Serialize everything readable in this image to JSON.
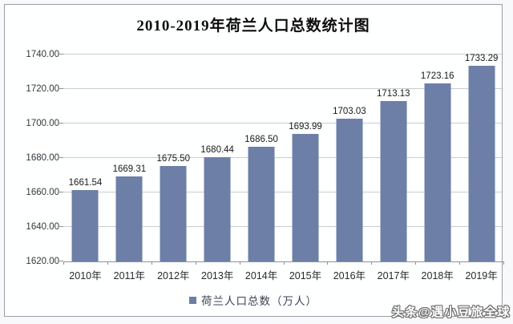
{
  "chart_data": {
    "type": "bar",
    "title": "2010-2019年荷兰人口总数统计图",
    "categories": [
      "2010年",
      "2011年",
      "2012年",
      "2013年",
      "2014年",
      "2015年",
      "2016年",
      "2017年",
      "2018年",
      "2019年"
    ],
    "series": [
      {
        "name": "荷兰人口总数（万人）",
        "values": [
          1661.54,
          1669.31,
          1675.5,
          1680.44,
          1686.5,
          1693.99,
          1703.03,
          1713.13,
          1723.16,
          1733.29
        ]
      }
    ],
    "value_labels": [
      "1661.54",
      "1669.31",
      "1675.50",
      "1680.44",
      "1686.50",
      "1693.99",
      "1703.03",
      "1713.13",
      "1723.16",
      "1733.29"
    ],
    "ylabel": "",
    "xlabel": "",
    "ylim": [
      1620,
      1740
    ],
    "yticks": [
      1620,
      1640,
      1660,
      1680,
      1700,
      1720,
      1740
    ],
    "ytick_labels": [
      "1620.00",
      "1640.00",
      "1660.00",
      "1680.00",
      "1700.00",
      "1720.00",
      "1740.00"
    ],
    "grid": true,
    "legend_position": "bottom",
    "bar_color": "#6d7fa7",
    "gridline_color": "#c9ccd1",
    "axis_color": "#8f9399"
  },
  "watermark": "头条@遇小豆旅全球"
}
